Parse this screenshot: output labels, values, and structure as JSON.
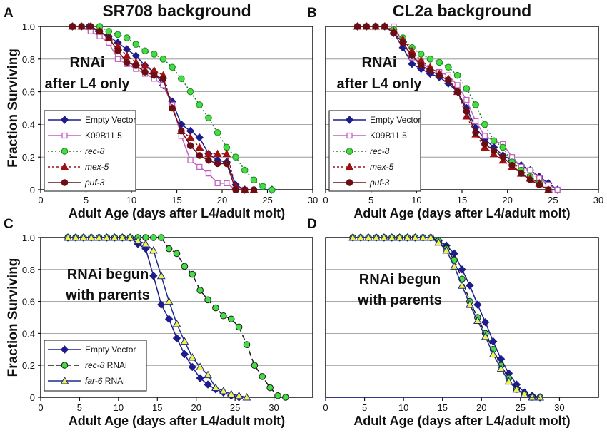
{
  "chart_data": [
    {
      "panel_letter": "A",
      "title": "SR708 background",
      "type": "line",
      "xlabel": "Adult Age (days after L4/adult molt)",
      "ylabel": "Fraction Surviving",
      "xlim": [
        0,
        30
      ],
      "ylim": [
        0,
        1
      ],
      "xticks": [
        "0",
        "5",
        "10",
        "15",
        "20",
        "25",
        "30"
      ],
      "yticks": [
        "0",
        "0.2",
        "0.4",
        "0.6",
        "0.8",
        "1.0"
      ],
      "annotation": [
        "RNAi",
        "after L4 only"
      ],
      "series": [
        {
          "name": "Empty Vector",
          "italic": false,
          "color": "#1c1c8c",
          "dash": "",
          "marker": "diamond",
          "x": [
            3.5,
            4.5,
            5.3,
            6.4,
            7.5,
            8.5,
            9.5,
            10.5,
            11.5,
            12.5,
            13.5,
            14.5,
            15.5,
            16.5,
            17.5,
            18.5,
            19.5,
            20.5,
            21.5,
            22.5,
            25.5
          ],
          "y": [
            1.0,
            1.0,
            1.0,
            0.97,
            0.94,
            0.9,
            0.86,
            0.82,
            0.76,
            0.72,
            0.64,
            0.54,
            0.4,
            0.36,
            0.32,
            0.22,
            0.18,
            0.17,
            0.03,
            0,
            0
          ]
        },
        {
          "name": "K09B11.5",
          "italic": false,
          "color": "#c060c0",
          "dash": "",
          "marker": "square",
          "x": [
            3.5,
            4.5,
            5.5,
            6.5,
            7.5,
            8.5,
            9.5,
            10.5,
            11.5,
            12.5,
            13.5,
            14.5,
            15.5,
            16.5,
            17.5,
            18.5,
            19.5,
            20.5,
            21.5,
            22.5
          ],
          "y": [
            1.0,
            1.0,
            0.97,
            0.94,
            0.9,
            0.8,
            0.77,
            0.74,
            0.71,
            0.68,
            0.64,
            0.52,
            0.33,
            0.18,
            0.14,
            0.1,
            0.04,
            0.04,
            0,
            0
          ]
        },
        {
          "name": "rec-8",
          "italic": true,
          "color": "#208020",
          "fill": "#44dd44",
          "dash": "2,3",
          "marker": "circle",
          "x": [
            3.5,
            4.5,
            5.5,
            6.5,
            7.5,
            8.5,
            9.5,
            10.5,
            11.5,
            12.5,
            13.5,
            14.5,
            15.5,
            16.5,
            17.5,
            18.5,
            19.5,
            20.5,
            21.5,
            22.5,
            23.5,
            24.5,
            25.5
          ],
          "y": [
            1.0,
            1.0,
            1.0,
            1.0,
            0.97,
            0.95,
            0.93,
            0.89,
            0.85,
            0.83,
            0.8,
            0.75,
            0.68,
            0.6,
            0.52,
            0.44,
            0.35,
            0.26,
            0.2,
            0.12,
            0.06,
            0.02,
            0
          ]
        },
        {
          "name": "mex-5",
          "italic": true,
          "color": "#a01010",
          "dash": "3,3",
          "marker": "triangle",
          "x": [
            3.5,
            4.5,
            5.5,
            6.5,
            7.5,
            8.5,
            9.5,
            10.5,
            11.5,
            12.5,
            13.5,
            14.5,
            15.5,
            16.5,
            17.5,
            18.5,
            19.5,
            20.5,
            21.5,
            22.5,
            23.5
          ],
          "y": [
            1.0,
            1.0,
            1.0,
            0.97,
            0.93,
            0.88,
            0.82,
            0.78,
            0.76,
            0.73,
            0.7,
            0.5,
            0.36,
            0.32,
            0.26,
            0.22,
            0.22,
            0.22,
            0.02,
            0,
            0
          ]
        },
        {
          "name": "puf-3",
          "italic": true,
          "color": "#6a0e16",
          "dash": "",
          "marker": "circle",
          "x": [
            3.5,
            4.5,
            5.5,
            6.5,
            7.5,
            8.5,
            9.5,
            10.5,
            11.5,
            12.5,
            13.5,
            14.5,
            15.5,
            16.5,
            17.5,
            18.5,
            19.5,
            20.5,
            21.5,
            22.5,
            23.5
          ],
          "y": [
            1.0,
            1.0,
            1.0,
            0.97,
            0.93,
            0.85,
            0.78,
            0.76,
            0.72,
            0.7,
            0.68,
            0.5,
            0.36,
            0.27,
            0.21,
            0.18,
            0.16,
            0.16,
            0,
            0,
            0
          ]
        }
      ]
    },
    {
      "panel_letter": "B",
      "title": "CL2a background",
      "type": "line",
      "xlabel": "Adult Age (days after L4/adult molt)",
      "ylabel": "",
      "xlim": [
        0,
        30
      ],
      "ylim": [
        0,
        1
      ],
      "xticks": [
        "0",
        "5",
        "10",
        "15",
        "20",
        "25",
        "30"
      ],
      "yticks": [],
      "annotation": [
        "RNAi",
        "after L4 only"
      ],
      "series": [
        {
          "name": "Empty Vector",
          "italic": false,
          "color": "#1c1c8c",
          "dash": "",
          "marker": "diamond",
          "x": [
            3.5,
            4.5,
            5.5,
            6.5,
            7.5,
            8.5,
            9.5,
            10.5,
            11.5,
            12.5,
            13.5,
            14.5,
            15.5,
            16.5,
            17.5,
            18.5,
            19.5,
            20.5,
            21.5,
            22.5,
            23.5,
            24.5,
            25.5
          ],
          "y": [
            1.0,
            1.0,
            1.0,
            1.0,
            0.96,
            0.87,
            0.77,
            0.74,
            0.71,
            0.69,
            0.65,
            0.6,
            0.5,
            0.38,
            0.31,
            0.26,
            0.21,
            0.18,
            0.15,
            0.12,
            0.08,
            0.04,
            0
          ]
        },
        {
          "name": "K09B11.5",
          "italic": false,
          "color": "#c060c0",
          "dash": "",
          "marker": "square",
          "x": [
            3.5,
            4.5,
            5.5,
            6.5,
            7.5,
            8.5,
            9.5,
            10.5,
            11.5,
            12.5,
            13.5,
            14.5,
            15.5,
            16.5,
            17.5,
            18.5,
            19.5,
            20.5,
            21.5,
            22.5,
            23.5,
            24.5,
            25.5
          ],
          "y": [
            1.0,
            1.0,
            1.0,
            1.0,
            1.0,
            0.9,
            0.81,
            0.78,
            0.74,
            0.72,
            0.7,
            0.64,
            0.55,
            0.42,
            0.33,
            0.3,
            0.28,
            0.2,
            0.14,
            0.12,
            0.07,
            0.03,
            0
          ]
        },
        {
          "name": "rec-8",
          "italic": true,
          "color": "#208020",
          "fill": "#44dd44",
          "dash": "2,3",
          "marker": "circle",
          "x": [
            3.5,
            4.5,
            5.5,
            6.5,
            7.5,
            8.5,
            9.5,
            10.5,
            11.5,
            12.5,
            13.5,
            14.5,
            15.5,
            16.5,
            17.5,
            18.5,
            19.5,
            20.5,
            21.5,
            22.5,
            23.5,
            24.5
          ],
          "y": [
            1.0,
            1.0,
            1.0,
            1.0,
            0.98,
            0.93,
            0.87,
            0.83,
            0.8,
            0.78,
            0.75,
            0.7,
            0.62,
            0.52,
            0.4,
            0.3,
            0.26,
            0.17,
            0.12,
            0.08,
            0.04,
            0
          ]
        },
        {
          "name": "mex-5",
          "italic": true,
          "color": "#a01010",
          "dash": "3,3",
          "marker": "triangle",
          "x": [
            3.5,
            4.5,
            5.5,
            6.5,
            7.5,
            8.5,
            9.5,
            10.5,
            11.5,
            12.5,
            13.5,
            14.5,
            15.5,
            16.5,
            17.5,
            18.5,
            19.5,
            20.5,
            21.5,
            22.5,
            23.5,
            24.5
          ],
          "y": [
            1.0,
            1.0,
            1.0,
            1.0,
            0.97,
            0.92,
            0.85,
            0.79,
            0.75,
            0.71,
            0.68,
            0.6,
            0.45,
            0.34,
            0.26,
            0.22,
            0.18,
            0.14,
            0.1,
            0.07,
            0.04,
            0
          ]
        },
        {
          "name": "puf-3",
          "italic": true,
          "color": "#6a0e16",
          "dash": "",
          "marker": "circle",
          "x": [
            3.5,
            4.5,
            5.5,
            6.5,
            7.5,
            8.5,
            9.5,
            10.5,
            11.5,
            12.5,
            13.5,
            14.5,
            15.5,
            16.5,
            17.5,
            18.5,
            19.5,
            20.5,
            21.5,
            22.5,
            23.5,
            24.5
          ],
          "y": [
            1.0,
            1.0,
            1.0,
            1.0,
            0.96,
            0.9,
            0.82,
            0.76,
            0.73,
            0.7,
            0.67,
            0.6,
            0.48,
            0.35,
            0.28,
            0.24,
            0.2,
            0.15,
            0.1,
            0.06,
            0.03,
            0
          ]
        }
      ]
    },
    {
      "panel_letter": "C",
      "title": "",
      "type": "line",
      "xlabel": "Adult Age (days after L4/adult molt)",
      "ylabel": "Fraction Surviving",
      "xlim": [
        0,
        35
      ],
      "ylim": [
        0,
        1
      ],
      "xticks": [
        "0",
        "5",
        "10",
        "15",
        "20",
        "25",
        "30"
      ],
      "yticks": [
        "0",
        "0.2",
        "0.4",
        "0.6",
        "0.8",
        "1.0"
      ],
      "annotation": [
        "RNAi begun",
        "with parents"
      ],
      "series": [
        {
          "name": "Empty Vector",
          "italic": false,
          "color": "#1c1c8c",
          "dash": "",
          "marker": "diamond",
          "x": [
            3.5,
            4.5,
            5.5,
            6.5,
            7.5,
            8.5,
            9.5,
            10.5,
            11.5,
            12.5,
            13.5,
            14.5,
            15.5,
            16.5,
            17.5,
            18.5,
            19.5,
            20.5,
            21.5,
            22.5,
            23.5,
            24.5,
            25.5
          ],
          "y": [
            1.0,
            1.0,
            1.0,
            1.0,
            1.0,
            1.0,
            1.0,
            1.0,
            1.0,
            0.96,
            0.93,
            0.76,
            0.58,
            0.49,
            0.37,
            0.27,
            0.19,
            0.12,
            0.08,
            0.05,
            0.03,
            0.01,
            0
          ]
        },
        {
          "name": "rec-8",
          "name_suffix": " RNAi",
          "italic": true,
          "color": "#1a1a1a",
          "fill": "#44dd44",
          "dash": "8,4",
          "marker": "circle",
          "x": [
            3.5,
            4.5,
            5.5,
            6.5,
            7.5,
            8.5,
            9.5,
            10.5,
            11.5,
            12.5,
            13.5,
            14.5,
            15.5,
            16.5,
            17.5,
            18.5,
            19.5,
            20.5,
            21.5,
            22.5,
            23.5,
            24.5,
            25.5,
            26.5,
            27.5,
            28.5,
            29.5,
            30.5,
            31.5
          ],
          "y": [
            1.0,
            1.0,
            1.0,
            1.0,
            1.0,
            1.0,
            1.0,
            1.0,
            1.0,
            1.0,
            1.0,
            1.0,
            1.0,
            0.93,
            0.9,
            0.82,
            0.77,
            0.67,
            0.61,
            0.56,
            0.51,
            0.49,
            0.44,
            0.33,
            0.2,
            0.13,
            0.06,
            0.01,
            0
          ]
        },
        {
          "name": "far-6",
          "name_suffix": " RNAi",
          "italic": true,
          "color": "#1c2c8c",
          "fill": "#f2f24a",
          "dash": "",
          "marker": "triangle",
          "x": [
            3.5,
            4.5,
            5.5,
            6.5,
            7.5,
            8.5,
            9.5,
            10.5,
            11.5,
            12.5,
            13.5,
            14.5,
            15.5,
            16.5,
            17.5,
            18.5,
            19.5,
            20.5,
            21.5,
            22.5,
            23.5,
            24.5,
            25.5,
            26.5
          ],
          "y": [
            1.0,
            1.0,
            1.0,
            1.0,
            1.0,
            1.0,
            1.0,
            1.0,
            1.0,
            0.98,
            0.96,
            0.92,
            0.76,
            0.6,
            0.46,
            0.35,
            0.25,
            0.19,
            0.14,
            0.06,
            0.04,
            0.02,
            0.01,
            0
          ]
        }
      ]
    },
    {
      "panel_letter": "D",
      "title": "",
      "type": "line",
      "xlabel": "Adult Age (days after L4/adult molt)",
      "ylabel": "",
      "xlim": [
        0,
        35
      ],
      "ylim": [
        0,
        1
      ],
      "xticks": [
        "0",
        "5",
        "10",
        "15",
        "20",
        "25",
        "30"
      ],
      "yticks": [],
      "annotation": [
        "RNAi begun",
        "with parents"
      ],
      "series": [
        {
          "name": "Empty Vector",
          "italic": false,
          "color": "#1c1c8c",
          "dash": "",
          "marker": "diamond",
          "x": [
            3.5,
            4.5,
            5.5,
            6.5,
            7.5,
            8.5,
            9.5,
            10.5,
            11.5,
            12.5,
            13.5,
            14.5,
            15.5,
            16.5,
            17.5,
            18.5,
            19.5,
            20.5,
            21.5,
            22.5,
            23.5,
            24.5,
            25.5,
            26.5,
            27.5
          ],
          "y": [
            1.0,
            1.0,
            1.0,
            1.0,
            1.0,
            1.0,
            1.0,
            1.0,
            1.0,
            1.0,
            1.0,
            0.98,
            0.95,
            0.9,
            0.8,
            0.7,
            0.58,
            0.47,
            0.35,
            0.24,
            0.15,
            0.08,
            0.03,
            0.01,
            0
          ]
        },
        {
          "name": "rec-8",
          "name_suffix": " RNAi",
          "italic": true,
          "color": "#1a1a1a",
          "fill": "#44dd44",
          "dash": "8,4",
          "marker": "circle",
          "x": [
            3.5,
            4.5,
            5.5,
            6.5,
            7.5,
            8.5,
            9.5,
            10.5,
            11.5,
            12.5,
            13.5,
            14.5,
            15.5,
            16.5,
            17.5,
            18.5,
            19.5,
            20.5,
            21.5,
            22.5,
            23.5,
            24.5,
            25.5,
            26.5,
            27.5
          ],
          "y": [
            1.0,
            1.0,
            1.0,
            1.0,
            1.0,
            1.0,
            1.0,
            1.0,
            1.0,
            1.0,
            1.0,
            0.98,
            0.93,
            0.86,
            0.74,
            0.6,
            0.5,
            0.4,
            0.3,
            0.2,
            0.12,
            0.05,
            0.02,
            0,
            0
          ]
        },
        {
          "name": "far-6",
          "name_suffix": " RNAi",
          "italic": true,
          "color": "#1c2c8c",
          "fill": "#f2f24a",
          "dash": "",
          "marker": "triangle",
          "x": [
            3.5,
            4.5,
            5.5,
            6.5,
            7.5,
            8.5,
            9.5,
            10.5,
            11.5,
            12.5,
            13.5,
            14.5,
            15.5,
            16.5,
            17.5,
            18.5,
            19.5,
            20.5,
            21.5,
            22.5,
            23.5,
            24.5,
            25.5,
            26.5,
            27.5
          ],
          "y": [
            1.0,
            1.0,
            1.0,
            1.0,
            1.0,
            1.0,
            1.0,
            1.0,
            1.0,
            1.0,
            1.0,
            0.97,
            0.92,
            0.82,
            0.7,
            0.58,
            0.48,
            0.38,
            0.27,
            0.18,
            0.1,
            0.05,
            0.02,
            0,
            0
          ]
        }
      ]
    }
  ]
}
